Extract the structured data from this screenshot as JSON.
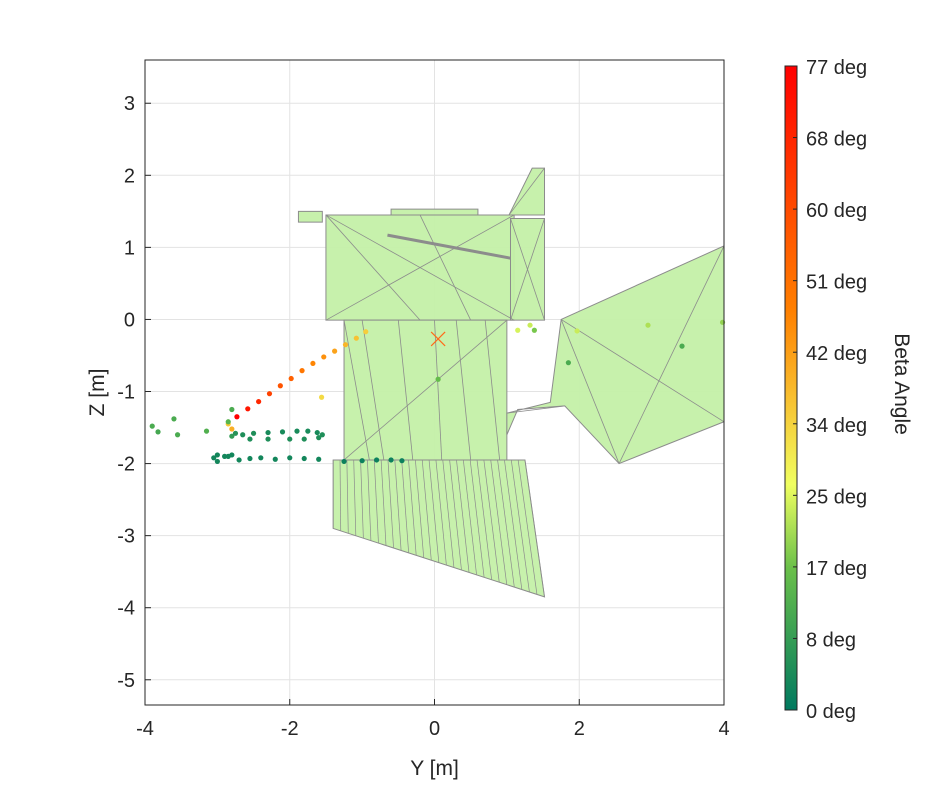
{
  "chart_data": {
    "type": "scatter",
    "title": "",
    "xlabel": "Y [m]",
    "ylabel": "Z [m]",
    "xlim": [
      -4,
      4
    ],
    "ylim": [
      -5.35,
      3.6
    ],
    "xticks": [
      "-4",
      "-2",
      "0",
      "2",
      "4"
    ],
    "yticks": [
      "3",
      "2",
      "1",
      "0",
      "-1",
      "-2",
      "-3",
      "-4",
      "-5"
    ],
    "grid": true,
    "colorbar": {
      "label": "Beta Angle",
      "range": [
        0,
        77
      ],
      "ticks": [
        "77 deg",
        "68 deg",
        "60 deg",
        "51 deg",
        "42 deg",
        "34 deg",
        "25 deg",
        "17 deg",
        "8 deg",
        "0 deg"
      ],
      "colors": [
        "#ff0000",
        "#ff8000",
        "#f0ff60",
        "#6ac04a",
        "#00795f"
      ]
    },
    "marker_color": "#ff6a1a",
    "spacecraft_fill": "#c4f0a8",
    "spacecraft_edge": "#8c8c8c",
    "points": [
      {
        "y": -2.73,
        "z": -1.35,
        "beta": 77
      },
      {
        "y": -2.58,
        "z": -1.24,
        "beta": 72
      },
      {
        "y": -2.43,
        "z": -1.14,
        "beta": 68
      },
      {
        "y": -2.28,
        "z": -1.03,
        "beta": 62
      },
      {
        "y": -2.13,
        "z": -0.92,
        "beta": 58
      },
      {
        "y": -1.98,
        "z": -0.82,
        "beta": 55
      },
      {
        "y": -1.83,
        "z": -0.71,
        "beta": 50
      },
      {
        "y": -1.68,
        "z": -0.61,
        "beta": 47
      },
      {
        "y": -1.53,
        "z": -0.52,
        "beta": 45
      },
      {
        "y": -1.38,
        "z": -0.44,
        "beta": 42
      },
      {
        "y": -1.23,
        "z": -0.35,
        "beta": 39
      },
      {
        "y": -1.08,
        "z": -0.26,
        "beta": 37
      },
      {
        "y": -0.95,
        "z": -0.17,
        "beta": 35
      },
      {
        "y": -1.56,
        "z": -1.08,
        "beta": 33
      },
      {
        "y": -2.85,
        "z": -1.45,
        "beta": 36
      },
      {
        "y": -2.8,
        "z": -1.52,
        "beta": 40
      },
      {
        "y": 1.15,
        "z": -0.15,
        "beta": 25
      },
      {
        "y": 1.32,
        "z": -0.08,
        "beta": 24
      },
      {
        "y": 1.38,
        "z": -0.15,
        "beta": 18
      },
      {
        "y": 1.97,
        "z": -0.16,
        "beta": 24
      },
      {
        "y": 2.95,
        "z": -0.08,
        "beta": 22
      },
      {
        "y": 3.98,
        "z": -0.04,
        "beta": 20
      },
      {
        "y": 1.85,
        "z": -0.6,
        "beta": 12
      },
      {
        "y": 3.42,
        "z": -0.37,
        "beta": 12
      },
      {
        "y": 0.05,
        "z": -0.83,
        "beta": 16
      },
      {
        "y": -3.9,
        "z": -1.48,
        "beta": 12
      },
      {
        "y": -3.82,
        "z": -1.56,
        "beta": 11
      },
      {
        "y": -3.6,
        "z": -1.38,
        "beta": 12
      },
      {
        "y": -3.55,
        "z": -1.6,
        "beta": 12
      },
      {
        "y": -3.15,
        "z": -1.55,
        "beta": 13
      },
      {
        "y": -2.8,
        "z": -1.25,
        "beta": 12
      },
      {
        "y": -2.85,
        "z": -1.42,
        "beta": 14
      },
      {
        "y": -2.8,
        "z": -1.62,
        "beta": 8
      },
      {
        "y": -2.75,
        "z": -1.58,
        "beta": 6
      },
      {
        "y": -2.65,
        "z": -1.6,
        "beta": 5
      },
      {
        "y": -2.5,
        "z": -1.58,
        "beta": 5
      },
      {
        "y": -2.3,
        "z": -1.57,
        "beta": 4
      },
      {
        "y": -2.1,
        "z": -1.56,
        "beta": 4
      },
      {
        "y": -1.9,
        "z": -1.55,
        "beta": 4
      },
      {
        "y": -1.75,
        "z": -1.55,
        "beta": 4
      },
      {
        "y": -1.62,
        "z": -1.57,
        "beta": 4
      },
      {
        "y": -1.55,
        "z": -1.6,
        "beta": 5
      },
      {
        "y": -1.6,
        "z": -1.64,
        "beta": 5
      },
      {
        "y": -1.8,
        "z": -1.66,
        "beta": 5
      },
      {
        "y": -2.0,
        "z": -1.66,
        "beta": 5
      },
      {
        "y": -2.3,
        "z": -1.66,
        "beta": 5
      },
      {
        "y": -2.55,
        "z": -1.66,
        "beta": 5
      },
      {
        "y": -3.05,
        "z": -1.92,
        "beta": 3
      },
      {
        "y": -3.0,
        "z": -1.97,
        "beta": 3
      },
      {
        "y": -2.9,
        "z": -1.9,
        "beta": 3
      },
      {
        "y": -2.8,
        "z": -1.88,
        "beta": 3
      },
      {
        "y": -2.7,
        "z": -1.95,
        "beta": 3
      },
      {
        "y": -2.55,
        "z": -1.93,
        "beta": 3
      },
      {
        "y": -2.4,
        "z": -1.92,
        "beta": 3
      },
      {
        "y": -2.2,
        "z": -1.94,
        "beta": 3
      },
      {
        "y": -2.0,
        "z": -1.92,
        "beta": 3
      },
      {
        "y": -1.8,
        "z": -1.93,
        "beta": 3
      },
      {
        "y": -1.6,
        "z": -1.94,
        "beta": 3
      },
      {
        "y": -1.25,
        "z": -1.97,
        "beta": 2
      },
      {
        "y": -1.0,
        "z": -1.96,
        "beta": 2
      },
      {
        "y": -0.8,
        "z": -1.95,
        "beta": 2
      },
      {
        "y": -0.6,
        "z": -1.95,
        "beta": 2
      },
      {
        "y": -0.45,
        "z": -1.96,
        "beta": 2
      },
      {
        "y": -2.85,
        "z": -1.9,
        "beta": 3
      },
      {
        "y": -3.0,
        "z": -1.88,
        "beta": 3
      }
    ],
    "origin_marker": {
      "y": 0.05,
      "z": -0.27
    }
  },
  "spacecraft_solids": [
    {
      "points": [
        [
          -1.5,
          1.45
        ],
        [
          1.1,
          1.45
        ],
        [
          1.1,
          -0.01
        ],
        [
          -1.5,
          -0.01
        ]
      ]
    },
    {
      "points": [
        [
          -1.25,
          -0.01
        ],
        [
          1.0,
          -0.01
        ],
        [
          1.0,
          -1.95
        ],
        [
          -1.25,
          -1.95
        ]
      ]
    },
    {
      "points": [
        [
          -1.4,
          -1.95
        ],
        [
          1.25,
          -1.95
        ],
        [
          1.52,
          -3.85
        ],
        [
          -1.4,
          -2.9
        ]
      ]
    },
    {
      "points": [
        [
          1.05,
          1.4
        ],
        [
          1.52,
          1.4
        ],
        [
          1.52,
          -0.01
        ],
        [
          1.05,
          -0.01
        ]
      ]
    },
    {
      "points": [
        [
          1.03,
          1.45
        ],
        [
          1.35,
          2.1
        ],
        [
          1.52,
          2.1
        ],
        [
          1.52,
          1.45
        ]
      ]
    },
    {
      "points": [
        [
          -1.88,
          1.5
        ],
        [
          -1.55,
          1.5
        ],
        [
          -1.55,
          1.35
        ],
        [
          -1.88,
          1.35
        ]
      ]
    },
    {
      "points": [
        [
          -0.6,
          1.53
        ],
        [
          0.6,
          1.53
        ],
        [
          0.6,
          1.45
        ],
        [
          -0.6,
          1.45
        ]
      ]
    },
    {
      "points": [
        [
          1.75,
          0.0
        ],
        [
          4.0,
          1.02
        ],
        [
          4.0,
          -1.42
        ],
        [
          2.55,
          -2.0
        ],
        [
          1.8,
          -1.2
        ],
        [
          1.15,
          -1.25
        ],
        [
          1.0,
          -1.6
        ],
        [
          1.0,
          -1.3
        ],
        [
          1.6,
          -1.15
        ]
      ]
    }
  ]
}
